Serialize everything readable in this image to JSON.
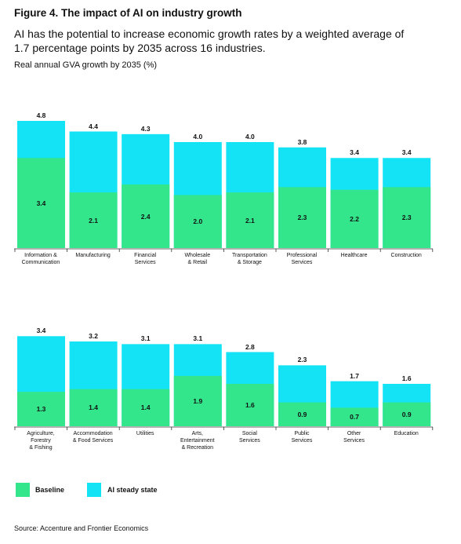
{
  "title": "Figure 4. The impact of AI on industry growth",
  "subtitle": "AI has the potential to increase economic growth rates by a weighted average of 1.7 percentage points by 2035 across 16 industries.",
  "axis_label": "Real annual GVA growth by 2035 (%)",
  "source": "Source: Accenture and Frontier Economics",
  "chart_data": [
    {
      "type": "bar",
      "overlay": true,
      "ylim": [
        0,
        4.8
      ],
      "categories": [
        "Information &\nCommunication",
        "Manufacturing",
        "Financial\nServices",
        "Wholesale\n& Retail",
        "Transportation\n& Storage",
        "Professional\nServices",
        "Healthcare",
        "Construction"
      ],
      "series": [
        {
          "name": "Baseline",
          "color": "#33e68c",
          "values": [
            3.4,
            2.1,
            2.4,
            2.0,
            2.1,
            2.3,
            2.2,
            2.3
          ],
          "value_labels": [
            "3.4",
            "2.1",
            "2.4",
            "2.0",
            "2.1",
            "2.3",
            "2.2",
            "2.3"
          ]
        },
        {
          "name": "AI steady state",
          "color": "#14e3f5",
          "values": [
            4.8,
            4.4,
            4.3,
            4.0,
            4.0,
            3.8,
            3.4,
            3.4
          ],
          "value_labels": [
            "4.8",
            "4.4",
            "4.3",
            "4.0",
            "4.0",
            "3.8",
            "3.4",
            "3.4"
          ]
        }
      ]
    },
    {
      "type": "bar",
      "overlay": true,
      "ylim": [
        0,
        4.8
      ],
      "categories": [
        "Agriculture,\nForestry\n& Fishing",
        "Accommodation\n& Food Services",
        "Utilities",
        "Arts,\nEntertainment\n& Recreation",
        "Social\nServices",
        "Public\nServices",
        "Other\nServices",
        "Education"
      ],
      "series": [
        {
          "name": "Baseline",
          "color": "#33e68c",
          "values": [
            1.3,
            1.4,
            1.4,
            1.9,
            1.6,
            0.9,
            0.7,
            0.9
          ],
          "value_labels": [
            "1.3",
            "1.4",
            "1.4",
            "1.9",
            "1.6",
            "0.9",
            "0.7",
            "0.9"
          ]
        },
        {
          "name": "AI steady state",
          "color": "#14e3f5",
          "values": [
            3.4,
            3.2,
            3.1,
            3.1,
            2.8,
            2.3,
            1.7,
            1.6
          ],
          "value_labels": [
            "3.4",
            "3.2",
            "3.1",
            "3.1",
            "2.8",
            "2.3",
            "1.7",
            "1.6"
          ]
        }
      ]
    }
  ]
}
